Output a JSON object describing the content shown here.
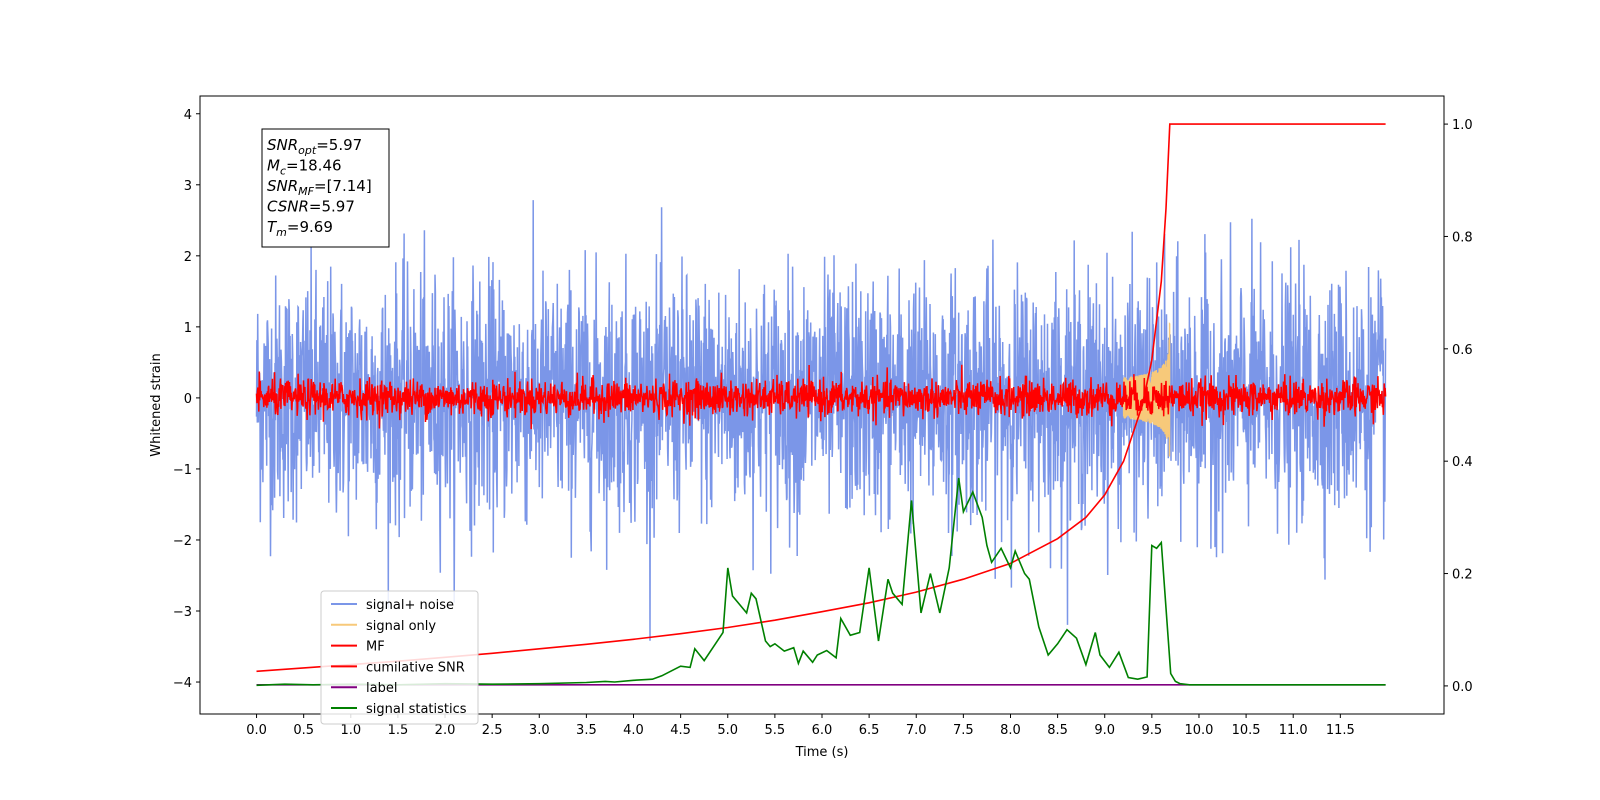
{
  "chart_data": {
    "type": "line",
    "title": "",
    "xlabel": "Time (s)",
    "ylabel": "Whitened strain",
    "xlim": [
      -0.6,
      12.6
    ],
    "ylim": [
      -4.45,
      4.25
    ],
    "ylim_right": [
      -0.05,
      1.05
    ],
    "x_ticks": [
      0.0,
      0.5,
      1.0,
      1.5,
      2.0,
      2.5,
      3.0,
      3.5,
      4.0,
      4.5,
      5.0,
      5.5,
      6.0,
      6.5,
      7.0,
      7.5,
      8.0,
      8.5,
      9.0,
      9.5,
      10.0,
      10.5,
      11.0,
      11.5
    ],
    "x_tick_labels": [
      "0.0",
      "0.5",
      "1.0",
      "1.5",
      "2.0",
      "2.5",
      "3.0",
      "3.5",
      "4.0",
      "4.5",
      "5.0",
      "5.5",
      "6.0",
      "6.5",
      "7.0",
      "7.5",
      "8.0",
      "8.5",
      "9.0",
      "9.5",
      "10.0",
      "10.5",
      "11.0",
      "11.5"
    ],
    "y_ticks": [
      -4,
      -3,
      -2,
      -1,
      0,
      1,
      2,
      3,
      4
    ],
    "y_tick_labels": [
      "−4",
      "−3",
      "−2",
      "−1",
      "0",
      "1",
      "2",
      "3",
      "4"
    ],
    "y_right_ticks": [
      0.0,
      0.2,
      0.4,
      0.6,
      0.8,
      1.0
    ],
    "y_right_tick_labels": [
      "0.0",
      "0.2",
      "0.4",
      "0.6",
      "0.8",
      "1.0"
    ],
    "grid": false,
    "legend_position": "lower-left",
    "series": [
      {
        "name": "signal+ noise",
        "color": "#7b96e8",
        "axis": "left",
        "kind": "noise",
        "t_start": 0.0,
        "t_end": 11.98,
        "sigma": 0.85,
        "points": 3000
      },
      {
        "name": "signal only",
        "color": "#f7c97a",
        "axis": "left",
        "kind": "chirp",
        "t_merge": 9.69,
        "peak_amplitude": 1.2
      },
      {
        "name": "MF",
        "color": "#ff0000",
        "axis": "left",
        "kind": "noise",
        "t_start": 0.0,
        "t_end": 11.98,
        "sigma": 0.13,
        "points": 2500
      },
      {
        "name": "cumilative SNR",
        "color": "#ff0000",
        "axis": "right",
        "x": [
          0.0,
          0.5,
          1.0,
          1.5,
          2.0,
          2.5,
          3.0,
          3.5,
          4.0,
          4.5,
          5.0,
          5.5,
          6.0,
          6.5,
          7.0,
          7.5,
          8.0,
          8.5,
          8.8,
          9.0,
          9.2,
          9.4,
          9.5,
          9.6,
          9.65,
          9.69,
          11.98
        ],
        "y": [
          0.026,
          0.032,
          0.038,
          0.044,
          0.051,
          0.058,
          0.066,
          0.074,
          0.083,
          0.093,
          0.104,
          0.117,
          0.132,
          0.148,
          0.167,
          0.19,
          0.218,
          0.262,
          0.3,
          0.34,
          0.4,
          0.5,
          0.58,
          0.72,
          0.85,
          1.0,
          1.0
        ]
      },
      {
        "name": "label",
        "color": "#800080",
        "axis": "right",
        "x": [
          0.0,
          11.98
        ],
        "y": [
          0.002,
          0.002
        ]
      },
      {
        "name": "signal statistics",
        "color": "#008000",
        "axis": "right",
        "x": [
          0.0,
          0.3,
          0.6,
          1.0,
          1.5,
          2.0,
          2.5,
          3.0,
          3.5,
          3.7,
          3.8,
          4.0,
          4.2,
          4.3,
          4.5,
          4.6,
          4.65,
          4.75,
          4.85,
          4.95,
          5.0,
          5.05,
          5.1,
          5.2,
          5.25,
          5.3,
          5.4,
          5.45,
          5.5,
          5.6,
          5.7,
          5.75,
          5.8,
          5.9,
          5.95,
          6.05,
          6.15,
          6.2,
          6.3,
          6.4,
          6.5,
          6.6,
          6.7,
          6.75,
          6.85,
          6.95,
          7.05,
          7.15,
          7.25,
          7.35,
          7.45,
          7.5,
          7.6,
          7.7,
          7.75,
          7.8,
          7.9,
          8.0,
          8.05,
          8.15,
          8.2,
          8.3,
          8.4,
          8.5,
          8.6,
          8.7,
          8.8,
          8.9,
          8.95,
          9.05,
          9.15,
          9.25,
          9.35,
          9.45,
          9.5,
          9.55,
          9.6,
          9.7,
          9.75,
          9.8,
          9.9,
          10.0,
          10.5,
          11.0,
          11.5,
          11.98
        ],
        "y": [
          0.001,
          0.003,
          0.002,
          0.003,
          0.002,
          0.004,
          0.003,
          0.004,
          0.006,
          0.008,
          0.007,
          0.01,
          0.012,
          0.018,
          0.035,
          0.033,
          0.066,
          0.045,
          0.07,
          0.095,
          0.21,
          0.16,
          0.15,
          0.13,
          0.165,
          0.155,
          0.08,
          0.07,
          0.075,
          0.062,
          0.068,
          0.04,
          0.062,
          0.042,
          0.055,
          0.063,
          0.05,
          0.12,
          0.09,
          0.095,
          0.21,
          0.08,
          0.19,
          0.165,
          0.145,
          0.33,
          0.13,
          0.2,
          0.13,
          0.21,
          0.37,
          0.31,
          0.345,
          0.3,
          0.25,
          0.22,
          0.245,
          0.21,
          0.24,
          0.2,
          0.19,
          0.105,
          0.055,
          0.075,
          0.1,
          0.085,
          0.038,
          0.095,
          0.055,
          0.033,
          0.06,
          0.015,
          0.012,
          0.016,
          0.25,
          0.245,
          0.255,
          0.022,
          0.008,
          0.004,
          0.002,
          0.002,
          0.002,
          0.002,
          0.002,
          0.002
        ]
      }
    ],
    "annotation": [
      {
        "base": "SNR",
        "sub": "opt",
        "value": "=5.97"
      },
      {
        "base": "M",
        "sub": "c",
        "value": "=18.46"
      },
      {
        "base": "SNR",
        "sub": "MF",
        "value": "=[7.14]"
      },
      {
        "base": "CSNR",
        "sub": "",
        "value": "=5.97"
      },
      {
        "base": "T",
        "sub": "m",
        "value": "=9.69"
      }
    ]
  }
}
